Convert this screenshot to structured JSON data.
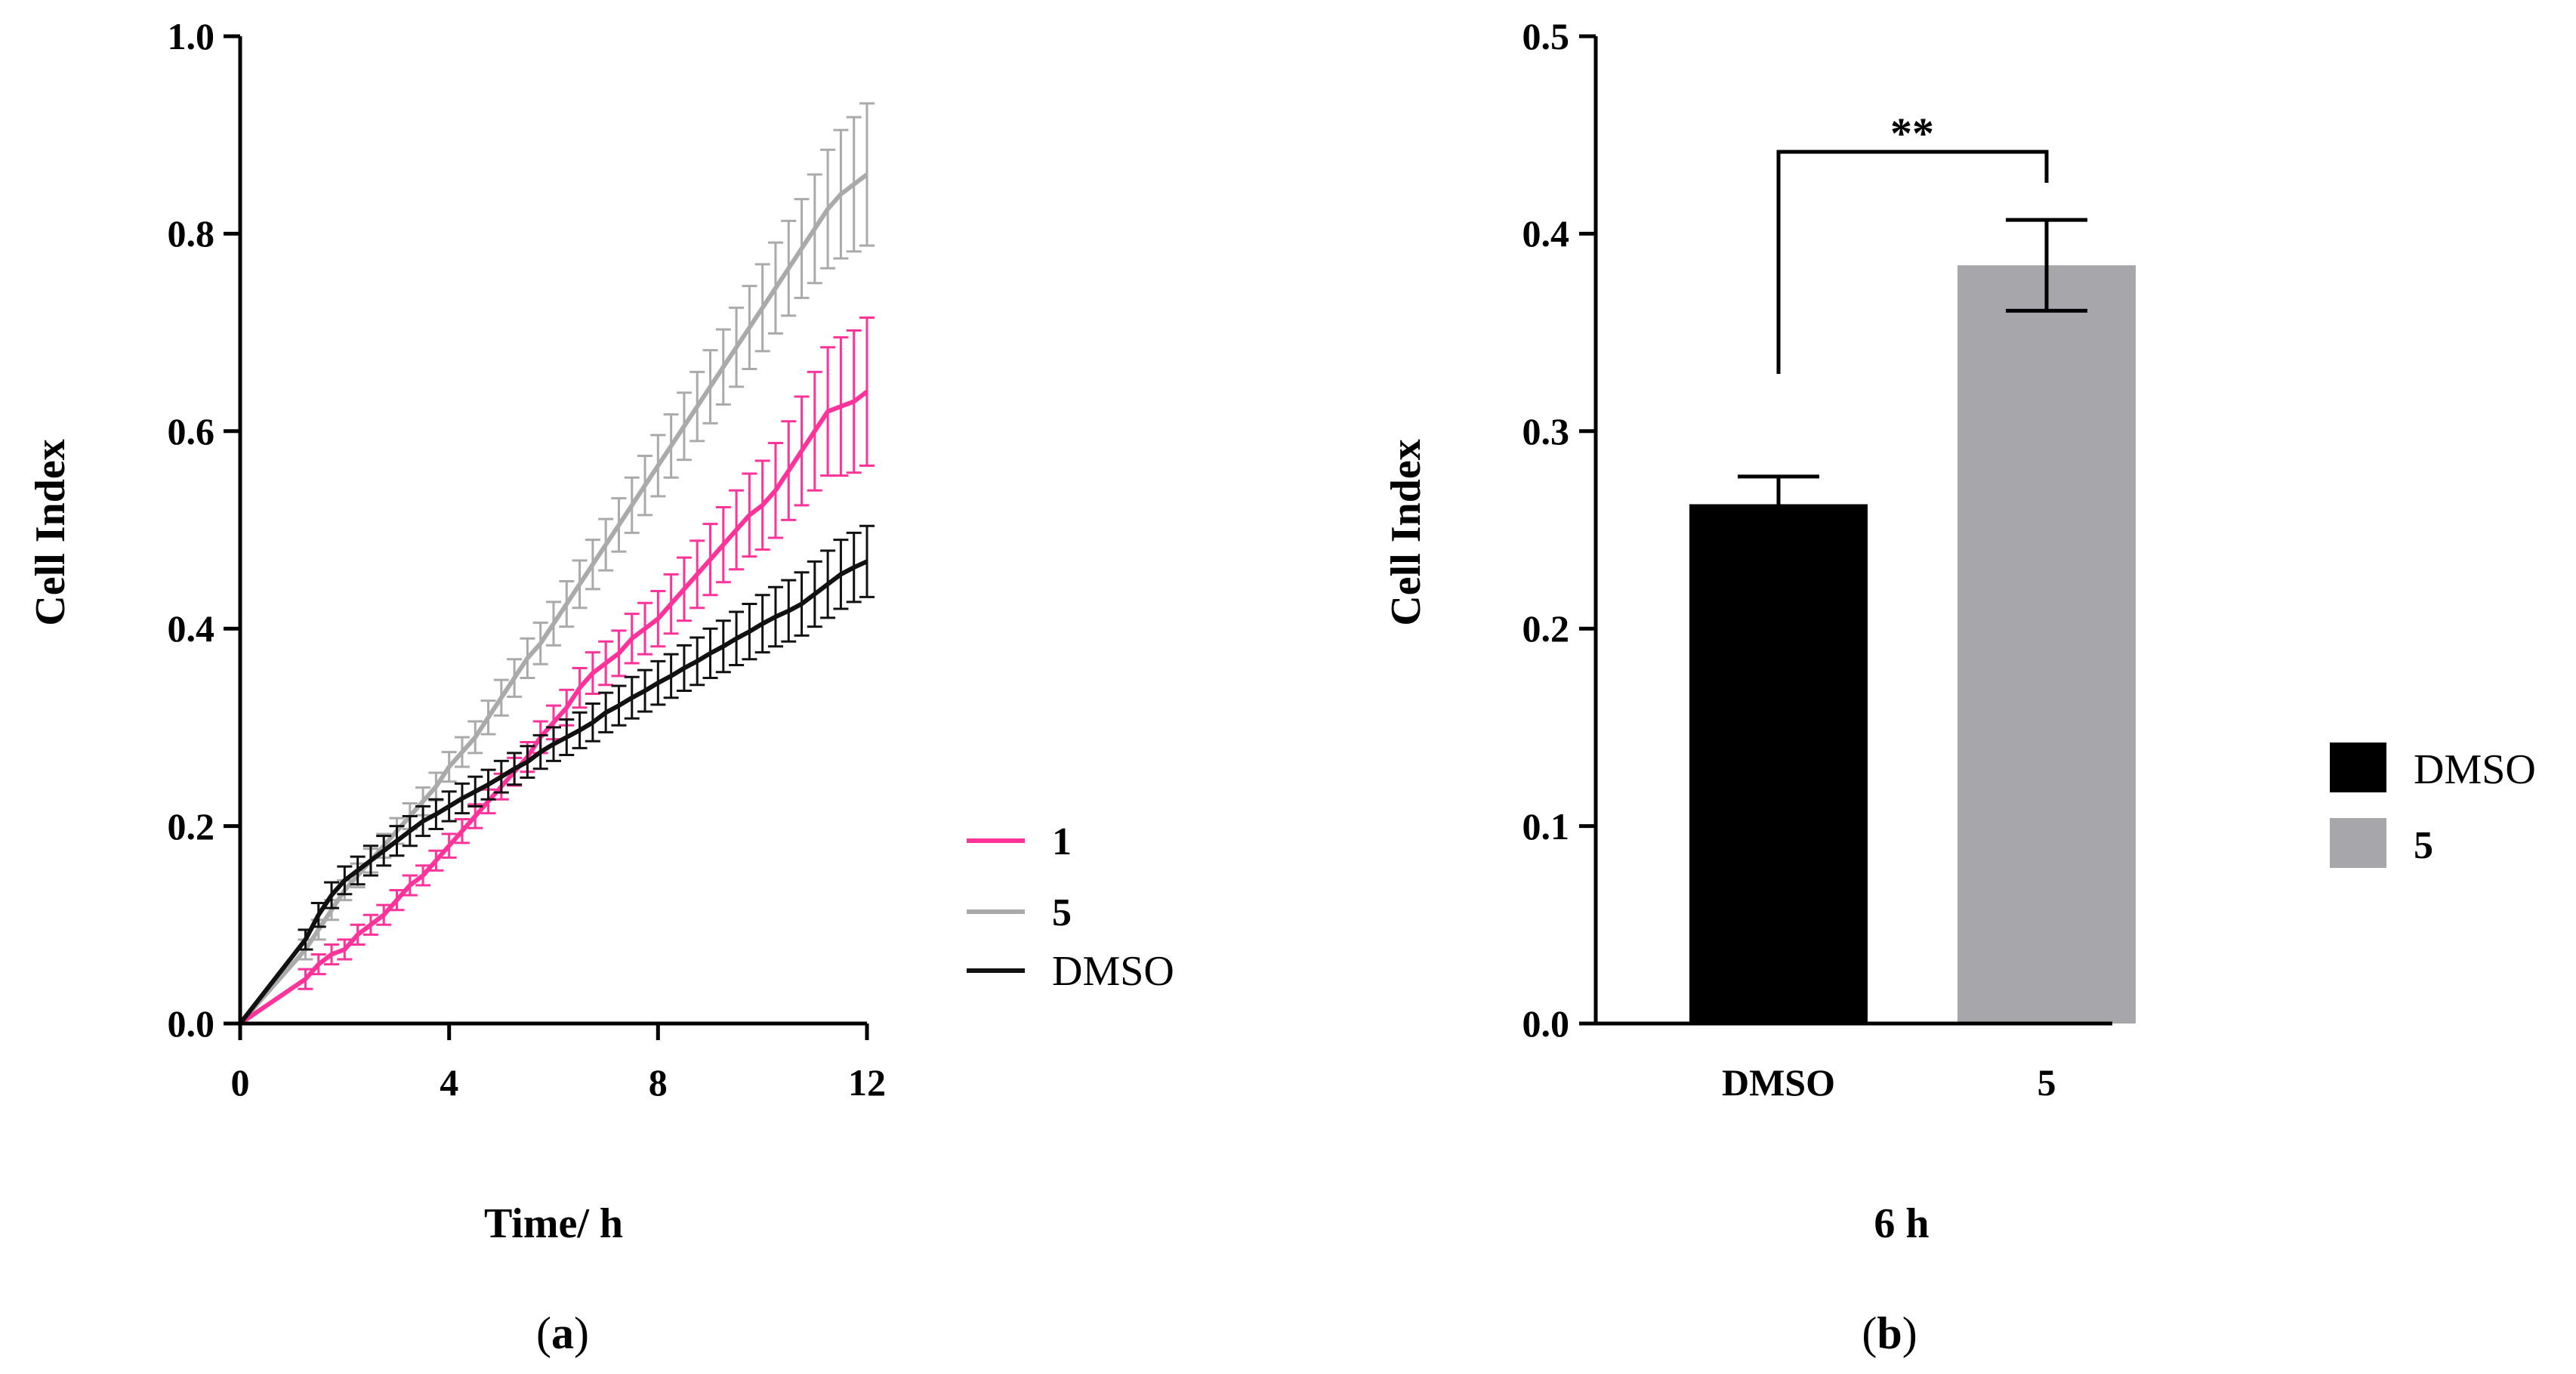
{
  "colors": {
    "series_1": "#ff3399",
    "series_5": "#aaaaaa",
    "series_dmso": "#111111",
    "bar_dmso": "#000000",
    "bar_5": "#a6a6ab",
    "axis": "#000000"
  },
  "chart_data": [
    {
      "panel": "(a)",
      "panel_letter": "a",
      "type": "line",
      "title": "",
      "xlabel": "Time/ h",
      "ylabel": "Cell Index",
      "xlim": [
        0,
        12
      ],
      "ylim": [
        0,
        1.0
      ],
      "xticks": [
        "0",
        "4",
        "8",
        "12"
      ],
      "yticks": [
        "0.0",
        "0.2",
        "0.4",
        "0.6",
        "0.8",
        "1.0"
      ],
      "legend": [
        "1",
        "5",
        "DMSO"
      ],
      "legend_position": "right",
      "x": [
        0,
        1.25,
        1.5,
        1.75,
        2.0,
        2.25,
        2.5,
        2.75,
        3.0,
        3.25,
        3.5,
        3.75,
        4.0,
        4.25,
        4.5,
        4.75,
        5.0,
        5.25,
        5.5,
        5.75,
        6.0,
        6.25,
        6.5,
        6.75,
        7.0,
        7.25,
        7.5,
        7.75,
        8.0,
        8.25,
        8.5,
        8.75,
        9.0,
        9.25,
        9.5,
        9.75,
        10.0,
        10.25,
        10.5,
        10.75,
        11.0,
        11.25,
        11.5,
        11.75,
        12.0
      ],
      "series": [
        {
          "name": "1",
          "values": [
            0,
            0.045,
            0.06,
            0.07,
            0.075,
            0.09,
            0.1,
            0.11,
            0.125,
            0.14,
            0.15,
            0.165,
            0.18,
            0.195,
            0.21,
            0.225,
            0.24,
            0.255,
            0.27,
            0.29,
            0.305,
            0.32,
            0.34,
            0.355,
            0.365,
            0.375,
            0.39,
            0.4,
            0.41,
            0.425,
            0.44,
            0.455,
            0.47,
            0.485,
            0.5,
            0.515,
            0.525,
            0.54,
            0.56,
            0.58,
            0.6,
            0.62,
            0.625,
            0.63,
            0.64
          ],
          "errors": [
            0,
            0.01,
            0.01,
            0.01,
            0.01,
            0.01,
            0.01,
            0.01,
            0.01,
            0.01,
            0.01,
            0.01,
            0.012,
            0.012,
            0.012,
            0.012,
            0.013,
            0.014,
            0.015,
            0.016,
            0.017,
            0.018,
            0.02,
            0.021,
            0.022,
            0.023,
            0.025,
            0.026,
            0.028,
            0.03,
            0.032,
            0.034,
            0.036,
            0.038,
            0.04,
            0.042,
            0.045,
            0.048,
            0.05,
            0.055,
            0.06,
            0.065,
            0.07,
            0.072,
            0.075
          ]
        },
        {
          "name": "5",
          "values": [
            0,
            0.075,
            0.095,
            0.115,
            0.135,
            0.15,
            0.165,
            0.18,
            0.195,
            0.21,
            0.225,
            0.24,
            0.26,
            0.275,
            0.29,
            0.31,
            0.33,
            0.35,
            0.37,
            0.385,
            0.405,
            0.425,
            0.445,
            0.465,
            0.485,
            0.505,
            0.525,
            0.545,
            0.565,
            0.585,
            0.605,
            0.625,
            0.645,
            0.665,
            0.685,
            0.705,
            0.725,
            0.745,
            0.765,
            0.785,
            0.805,
            0.825,
            0.84,
            0.85,
            0.86
          ],
          "errors": [
            0,
            0.01,
            0.01,
            0.01,
            0.01,
            0.012,
            0.012,
            0.012,
            0.013,
            0.013,
            0.014,
            0.014,
            0.015,
            0.015,
            0.016,
            0.017,
            0.018,
            0.019,
            0.02,
            0.021,
            0.022,
            0.023,
            0.024,
            0.025,
            0.026,
            0.027,
            0.028,
            0.03,
            0.031,
            0.032,
            0.034,
            0.035,
            0.037,
            0.038,
            0.04,
            0.042,
            0.044,
            0.046,
            0.048,
            0.05,
            0.055,
            0.06,
            0.065,
            0.068,
            0.072
          ]
        },
        {
          "name": "DMSO",
          "values": [
            0,
            0.085,
            0.11,
            0.13,
            0.145,
            0.155,
            0.165,
            0.175,
            0.185,
            0.195,
            0.205,
            0.212,
            0.22,
            0.228,
            0.235,
            0.242,
            0.25,
            0.258,
            0.265,
            0.275,
            0.283,
            0.29,
            0.297,
            0.305,
            0.315,
            0.322,
            0.33,
            0.337,
            0.345,
            0.352,
            0.36,
            0.367,
            0.375,
            0.382,
            0.39,
            0.397,
            0.405,
            0.412,
            0.418,
            0.425,
            0.435,
            0.445,
            0.455,
            0.462,
            0.468
          ],
          "errors": [
            0,
            0.01,
            0.012,
            0.013,
            0.014,
            0.014,
            0.015,
            0.015,
            0.015,
            0.015,
            0.015,
            0.015,
            0.015,
            0.015,
            0.015,
            0.015,
            0.016,
            0.016,
            0.016,
            0.017,
            0.017,
            0.018,
            0.018,
            0.019,
            0.02,
            0.02,
            0.021,
            0.021,
            0.022,
            0.022,
            0.023,
            0.024,
            0.025,
            0.026,
            0.027,
            0.028,
            0.029,
            0.03,
            0.031,
            0.032,
            0.033,
            0.034,
            0.035,
            0.035,
            0.036
          ]
        }
      ]
    },
    {
      "panel": "(b)",
      "panel_letter": "b",
      "type": "bar",
      "title": "",
      "xlabel": "6 h",
      "ylabel": "Cell Index",
      "categories": [
        "DMSO",
        "5"
      ],
      "values": [
        0.263,
        0.384
      ],
      "errors": [
        0.014,
        0.023
      ],
      "ylim": [
        0,
        0.5
      ],
      "yticks": [
        "0.0",
        "0.1",
        "0.2",
        "0.3",
        "0.4",
        "0.5"
      ],
      "legend": [
        "DMSO",
        "5"
      ],
      "legend_position": "right",
      "significance": "**"
    }
  ]
}
